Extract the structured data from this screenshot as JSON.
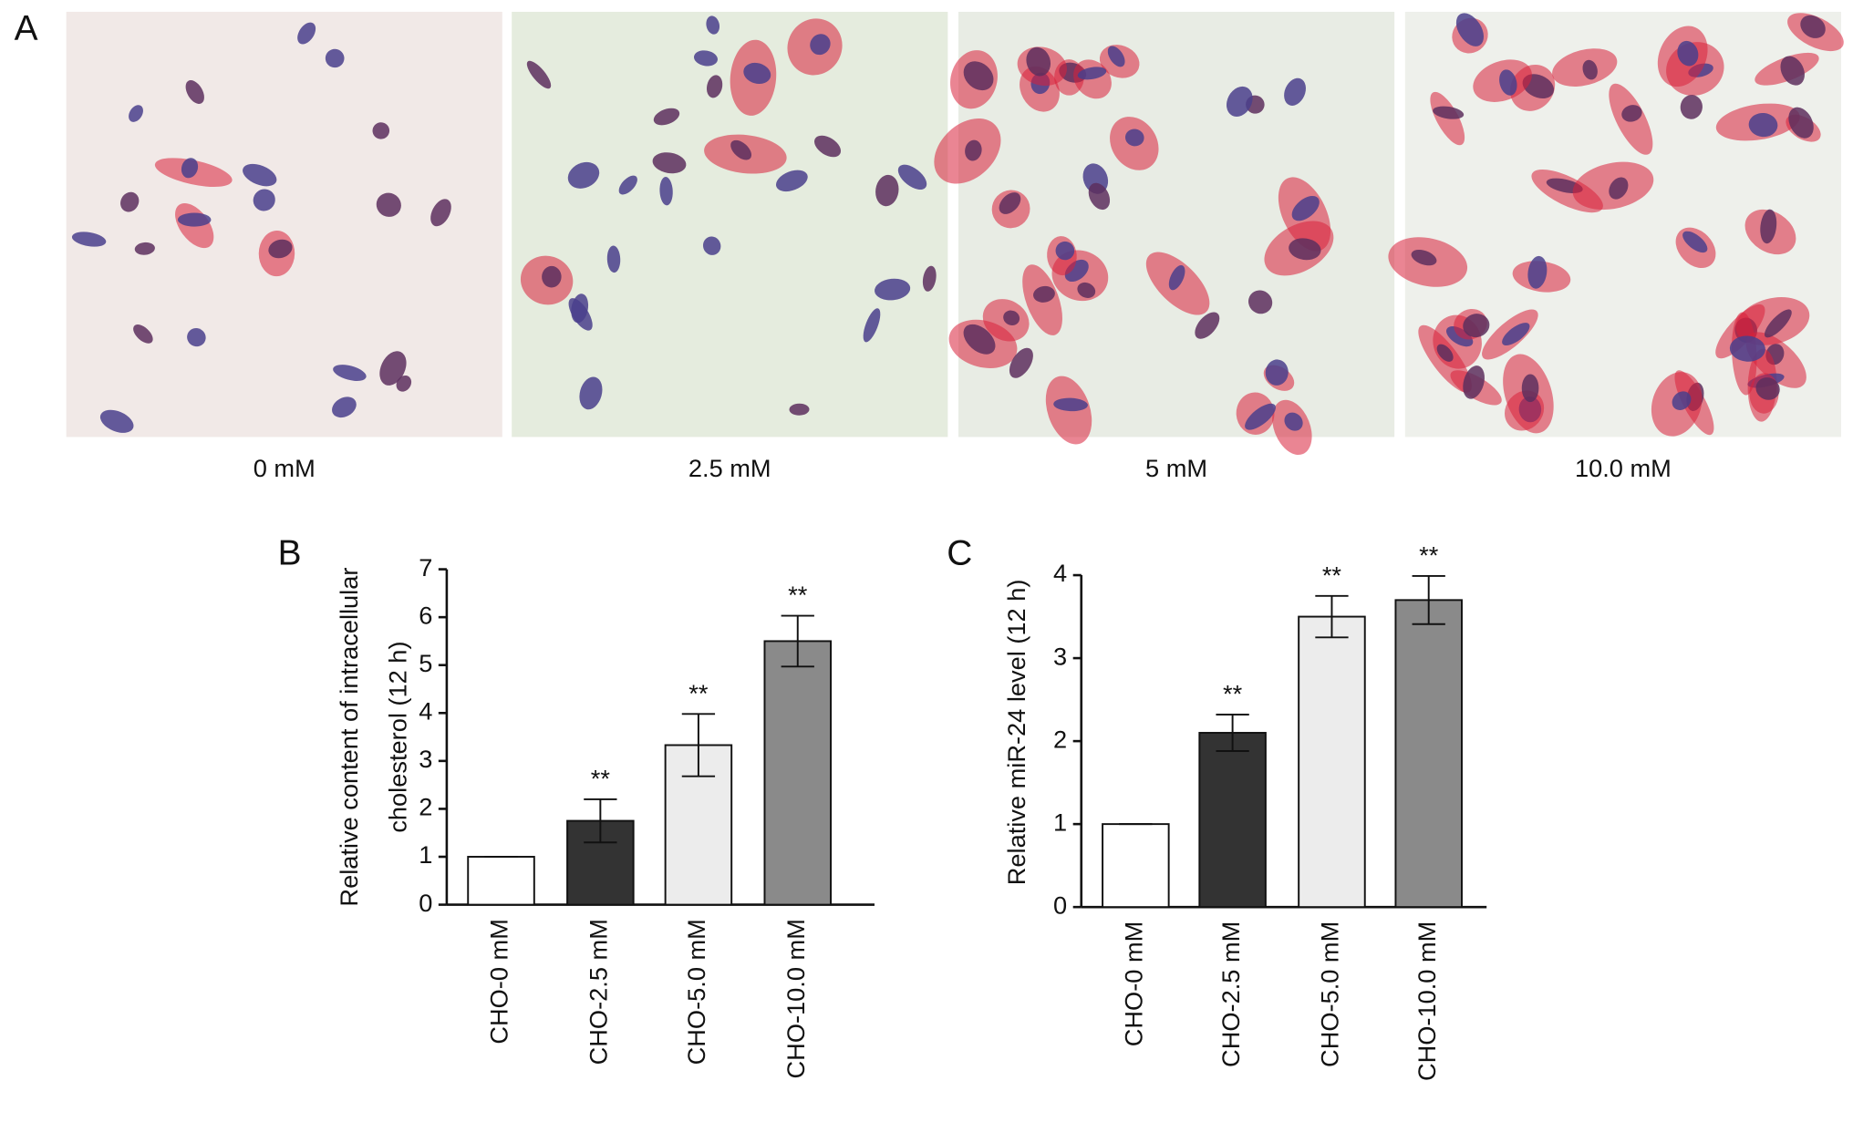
{
  "micrographs": {
    "panel_label": "A",
    "captions": [
      "0 mM",
      "2.5 mM",
      "5 mM",
      "10.0 mM"
    ]
  },
  "chart_data": [
    {
      "type": "bar",
      "panel_label": "B",
      "ylabel": [
        "Relative content of intracellular",
        "cholesterol (12 h)"
      ],
      "categories": [
        "CHO-0 mM",
        "CHO-2.5 mM",
        "CHO-5.0 mM",
        "CHO-10.0 mM"
      ],
      "values": [
        1,
        1.75,
        3.33,
        5.5
      ],
      "errors": [
        0,
        0.45,
        0.65,
        0.53
      ],
      "annotations": [
        null,
        "**",
        "**",
        "**"
      ],
      "colors": [
        "#ffffff",
        "#333333",
        "#ececec",
        "#8a8a8a"
      ],
      "ylim": [
        0,
        7
      ],
      "yticks": [
        0,
        1,
        2,
        3,
        4,
        5,
        6,
        7
      ]
    },
    {
      "type": "bar",
      "panel_label": "C",
      "ylabel": [
        "Relative miR-24 level (12 h)"
      ],
      "categories": [
        "CHO-0 mM",
        "CHO-2.5 mM",
        "CHO-5.0 mM",
        "CHO-10.0 mM"
      ],
      "values": [
        1,
        2.1,
        3.5,
        3.7
      ],
      "errors": [
        0,
        0.22,
        0.25,
        0.29
      ],
      "annotations": [
        null,
        "**",
        "**",
        "**"
      ],
      "colors": [
        "#ffffff",
        "#333333",
        "#ececec",
        "#8a8a8a"
      ],
      "ylim": [
        0,
        4
      ],
      "yticks": [
        0,
        1,
        2,
        3,
        4
      ]
    }
  ]
}
